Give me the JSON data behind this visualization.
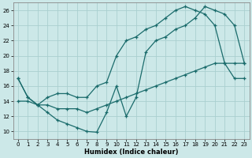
{
  "xlabel": "Humidex (Indice chaleur)",
  "xlim": [
    -0.5,
    23.5
  ],
  "ylim": [
    9,
    27
  ],
  "yticks": [
    10,
    12,
    14,
    16,
    18,
    20,
    22,
    24,
    26
  ],
  "xticks": [
    0,
    1,
    2,
    3,
    4,
    5,
    6,
    7,
    8,
    9,
    10,
    11,
    12,
    13,
    14,
    15,
    16,
    17,
    18,
    19,
    20,
    21,
    22,
    23
  ],
  "background_color": "#cce8e8",
  "grid_color": "#aacfcf",
  "line_color": "#1a6b6b",
  "line1_x": [
    0,
    1,
    2,
    3,
    4,
    5,
    6,
    7,
    8,
    9,
    10,
    11,
    12,
    13,
    14,
    15,
    16,
    17,
    18,
    19,
    20,
    21,
    22,
    23
  ],
  "line1_y": [
    17,
    14.5,
    13.5,
    12.5,
    11.5,
    11.0,
    10.5,
    10.0,
    9.9,
    12.5,
    16.0,
    12.0,
    14.5,
    20.5,
    22.0,
    22.5,
    23.5,
    24.0,
    25.0,
    26.5,
    26.0,
    25.5,
    24.0,
    19.0
  ],
  "line2_x": [
    0,
    1,
    2,
    3,
    4,
    5,
    6,
    7,
    8,
    9,
    10,
    11,
    12,
    13,
    14,
    15,
    16,
    17,
    18,
    19,
    20,
    21,
    22,
    23
  ],
  "line2_y": [
    17.0,
    14.5,
    13.5,
    14.5,
    15.0,
    15.0,
    14.5,
    14.5,
    16.0,
    16.5,
    20.0,
    22.0,
    22.5,
    23.5,
    24.0,
    25.0,
    26.0,
    26.5,
    26.0,
    25.5,
    24.0,
    19.0,
    17.0,
    17.0
  ],
  "line3_x": [
    0,
    1,
    2,
    3,
    4,
    5,
    6,
    7,
    8,
    9,
    10,
    11,
    12,
    13,
    14,
    15,
    16,
    17,
    18,
    19,
    20,
    21,
    22,
    23
  ],
  "line3_y": [
    14.0,
    14.0,
    13.5,
    13.5,
    13.0,
    13.0,
    13.0,
    12.5,
    13.0,
    13.5,
    14.0,
    14.5,
    15.0,
    15.5,
    16.0,
    16.5,
    17.0,
    17.5,
    18.0,
    18.5,
    19.0,
    19.0,
    19.0,
    19.0
  ]
}
